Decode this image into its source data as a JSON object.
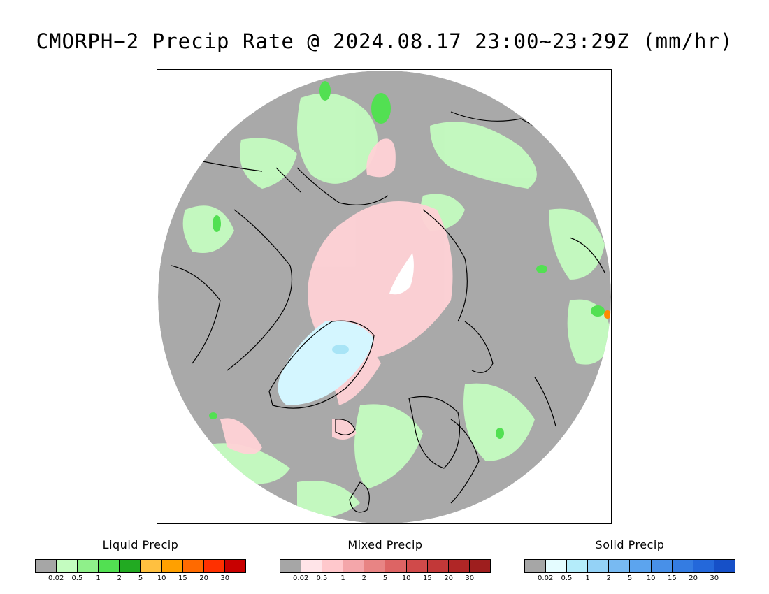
{
  "title": "CMORPH−2 Precip Rate @ 2024.08.17 23:00~23:29Z (mm/hr)",
  "map": {
    "projection": "polar-stereographic-north",
    "background_color": "#a9a9a9",
    "coastline_color": "#000000"
  },
  "tick_labels": [
    "0.02",
    "0.5",
    "1",
    "2",
    "5",
    "10",
    "15",
    "20",
    "30"
  ],
  "legends": [
    {
      "title": "Liquid Precip",
      "colors": [
        "#a6a6a6",
        "#c4fcc0",
        "#8ff08a",
        "#52e052",
        "#22aa22",
        "#ffc040",
        "#ffa000",
        "#ff6a00",
        "#ff3000",
        "#c80000"
      ]
    },
    {
      "title": "Mixed Precip",
      "colors": [
        "#a6a6a6",
        "#ffe4e8",
        "#ffc8cc",
        "#f4a6aa",
        "#e88484",
        "#dd6464",
        "#d04a4a",
        "#c23838",
        "#b02626",
        "#9e1e1e"
      ]
    },
    {
      "title": "Solid Precip",
      "colors": [
        "#a6a6a6",
        "#e4fcff",
        "#b4ecfa",
        "#94d2f6",
        "#78baf2",
        "#5ca4ee",
        "#4890e8",
        "#347ce2",
        "#2468da",
        "#1650c8"
      ]
    }
  ]
}
